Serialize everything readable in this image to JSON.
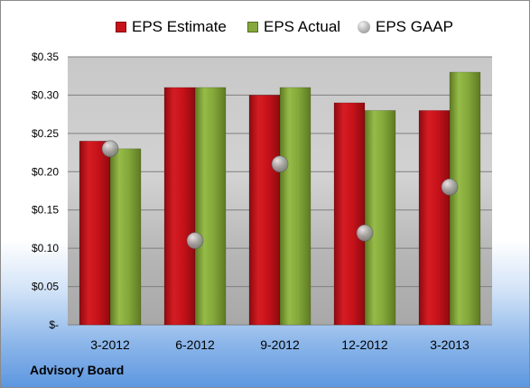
{
  "chart_data": {
    "type": "bar",
    "categories": [
      "3-2012",
      "6-2012",
      "9-2012",
      "12-2012",
      "3-2013"
    ],
    "series": [
      {
        "name": "EPS Estimate",
        "kind": "bar",
        "color": "#c8121a",
        "values": [
          0.24,
          0.31,
          0.3,
          0.29,
          0.28
        ]
      },
      {
        "name": "EPS Actual",
        "kind": "bar",
        "color": "#84a83a",
        "values": [
          0.23,
          0.31,
          0.31,
          0.28,
          0.33
        ]
      },
      {
        "name": "EPS GAAP",
        "kind": "marker",
        "color": "#a6a6a6",
        "values": [
          0.23,
          0.11,
          0.21,
          0.12,
          0.18
        ]
      }
    ],
    "yticks": [
      {
        "value": 0,
        "label": "$-"
      },
      {
        "value": 0.05,
        "label": "$0.05"
      },
      {
        "value": 0.1,
        "label": "$0.10"
      },
      {
        "value": 0.15,
        "label": "$0.15"
      },
      {
        "value": 0.2,
        "label": "$0.20"
      },
      {
        "value": 0.25,
        "label": "$0.25"
      },
      {
        "value": 0.3,
        "label": "$0.30"
      },
      {
        "value": 0.35,
        "label": "$0.35"
      }
    ],
    "ylim": [
      0,
      0.35
    ],
    "grid": true,
    "legend_position": "top"
  },
  "footer": {
    "text": "Advisory Board"
  }
}
